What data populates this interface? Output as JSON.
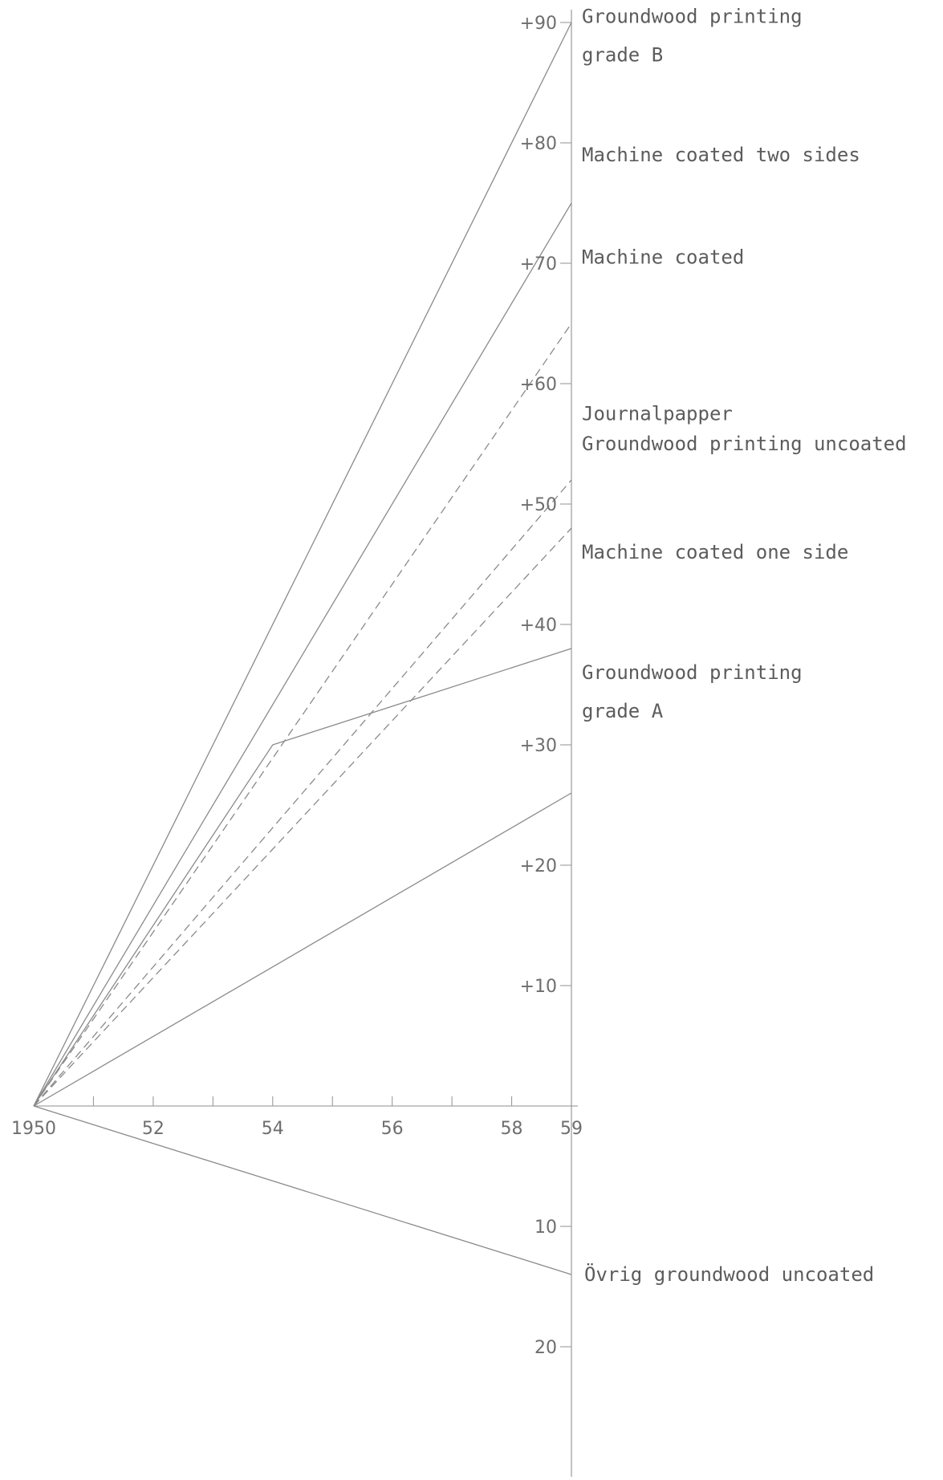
{
  "chart_data": {
    "type": "line",
    "title": "",
    "xlabel": "",
    "ylabel": "",
    "x_ticks": [
      {
        "value": 1950,
        "label": "1950"
      },
      {
        "value": 1952,
        "label": "52"
      },
      {
        "value": 1954,
        "label": "54"
      },
      {
        "value": 1956,
        "label": "56"
      },
      {
        "value": 1958,
        "label": "58"
      },
      {
        "value": 1959,
        "label": "59"
      }
    ],
    "y_ticks": [
      {
        "value": 90,
        "label": "+90"
      },
      {
        "value": 80,
        "label": "+80"
      },
      {
        "value": 70,
        "label": "+70"
      },
      {
        "value": 60,
        "label": "+60"
      },
      {
        "value": 50,
        "label": "+50"
      },
      {
        "value": 40,
        "label": "+40"
      },
      {
        "value": 30,
        "label": "+30"
      },
      {
        "value": 20,
        "label": "+20"
      },
      {
        "value": 10,
        "label": "+10"
      },
      {
        "value": -10,
        "label": "10"
      },
      {
        "value": -20,
        "label": "20"
      }
    ],
    "xlim": [
      1950,
      1959
    ],
    "ylim": [
      -30,
      90
    ],
    "grid": false,
    "series": [
      {
        "name": "Groundwood printing grade B",
        "points": [
          [
            1950,
            0
          ],
          [
            1959,
            90
          ]
        ],
        "label_lines": [
          "Groundwood printing",
          "grade B"
        ]
      },
      {
        "name": "Machine coated two sides",
        "points": [
          [
            1950,
            0
          ],
          [
            1959,
            75
          ]
        ],
        "label_lines": [
          "Machine coated two sides"
        ]
      },
      {
        "name": "Machine coated",
        "points": [
          [
            1950,
            0
          ],
          [
            1959,
            65
          ]
        ],
        "label_lines": [
          "Machine coated"
        ]
      },
      {
        "name": "Journalpapper",
        "points": [
          [
            1950,
            0
          ],
          [
            1959,
            52
          ]
        ],
        "label_lines": [
          "Journalpapper"
        ]
      },
      {
        "name": "Groundwood printing uncoated",
        "points": [
          [
            1950,
            0
          ],
          [
            1959,
            48
          ]
        ],
        "label_lines": [
          "Groundwood printing uncoated"
        ]
      },
      {
        "name": "Machine coated one side",
        "points": [
          [
            1950,
            0
          ],
          [
            1954,
            30
          ],
          [
            1959,
            38
          ]
        ],
        "label_lines": [
          "Machine coated one side"
        ]
      },
      {
        "name": "Groundwood printing grade A",
        "points": [
          [
            1950,
            0
          ],
          [
            1959,
            26
          ]
        ],
        "label_lines": [
          "Groundwood printing",
          "grade A"
        ]
      },
      {
        "name": "Övrig groundwood uncoated",
        "points": [
          [
            1950,
            0
          ],
          [
            1959,
            -14
          ]
        ],
        "label_lines": [
          "Övrig groundwood uncoated"
        ]
      }
    ],
    "colors": {
      "line": "#8a8a8a",
      "axis": "#8f8f8f",
      "text": "#5c5c5c"
    }
  }
}
